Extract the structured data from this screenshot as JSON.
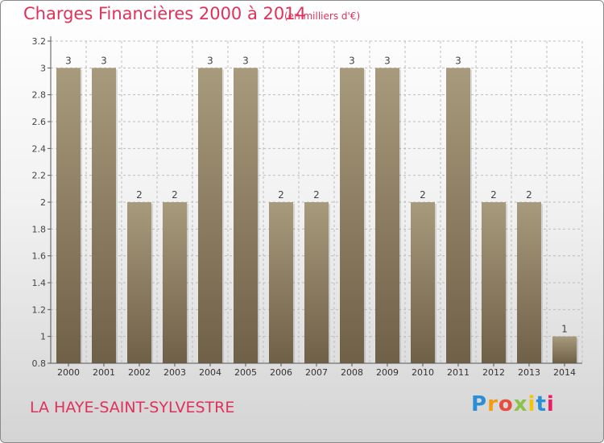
{
  "title": "Charges Financières 2000 à 2014",
  "subtitle": "(en milliers d'€)",
  "commune": "LA HAYE-SAINT-SYLVESTRE",
  "logo": {
    "letters": [
      "P",
      "r",
      "o",
      "x",
      "i",
      "t",
      "i"
    ],
    "colors": [
      "#2a8fd6",
      "#f39c12",
      "#e74c3c",
      "#8bc34a",
      "#f1c40f",
      "#2a8fd6",
      "#e91e63"
    ]
  },
  "colors": {
    "title": "#e0315b",
    "bar_light": "#a89a7c",
    "bar_dark": "#6f6048",
    "grid": "#bdbdbd"
  },
  "chart_data": {
    "type": "bar",
    "title": "Charges Financières 2000 à 2014",
    "subtitle": "(en milliers d'€)",
    "xlabel": "",
    "ylabel": "",
    "categories": [
      "2000",
      "2001",
      "2002",
      "2003",
      "2004",
      "2005",
      "2006",
      "2007",
      "2008",
      "2009",
      "2010",
      "2011",
      "2012",
      "2013",
      "2014"
    ],
    "values": [
      3,
      3,
      2,
      2,
      3,
      3,
      2,
      2,
      3,
      3,
      2,
      3,
      2,
      2,
      1
    ],
    "data_labels": [
      "3",
      "3",
      "2",
      "2",
      "3",
      "3",
      "2",
      "2",
      "3",
      "3",
      "2",
      "3",
      "2",
      "2",
      "1"
    ],
    "ylim": [
      0.8,
      3.2
    ],
    "yticks": [
      0.8,
      1,
      1.2,
      1.4,
      1.6,
      1.8,
      2,
      2.2,
      2.4,
      2.6,
      2.8,
      3,
      3.2
    ],
    "ytick_labels": [
      "0.8",
      "1",
      "1.2",
      "1.4",
      "1.6",
      "1.8",
      "2",
      "2.2",
      "2.4",
      "2.6",
      "2.8",
      "3",
      "3.2"
    ],
    "grid": true,
    "legend": "none"
  }
}
